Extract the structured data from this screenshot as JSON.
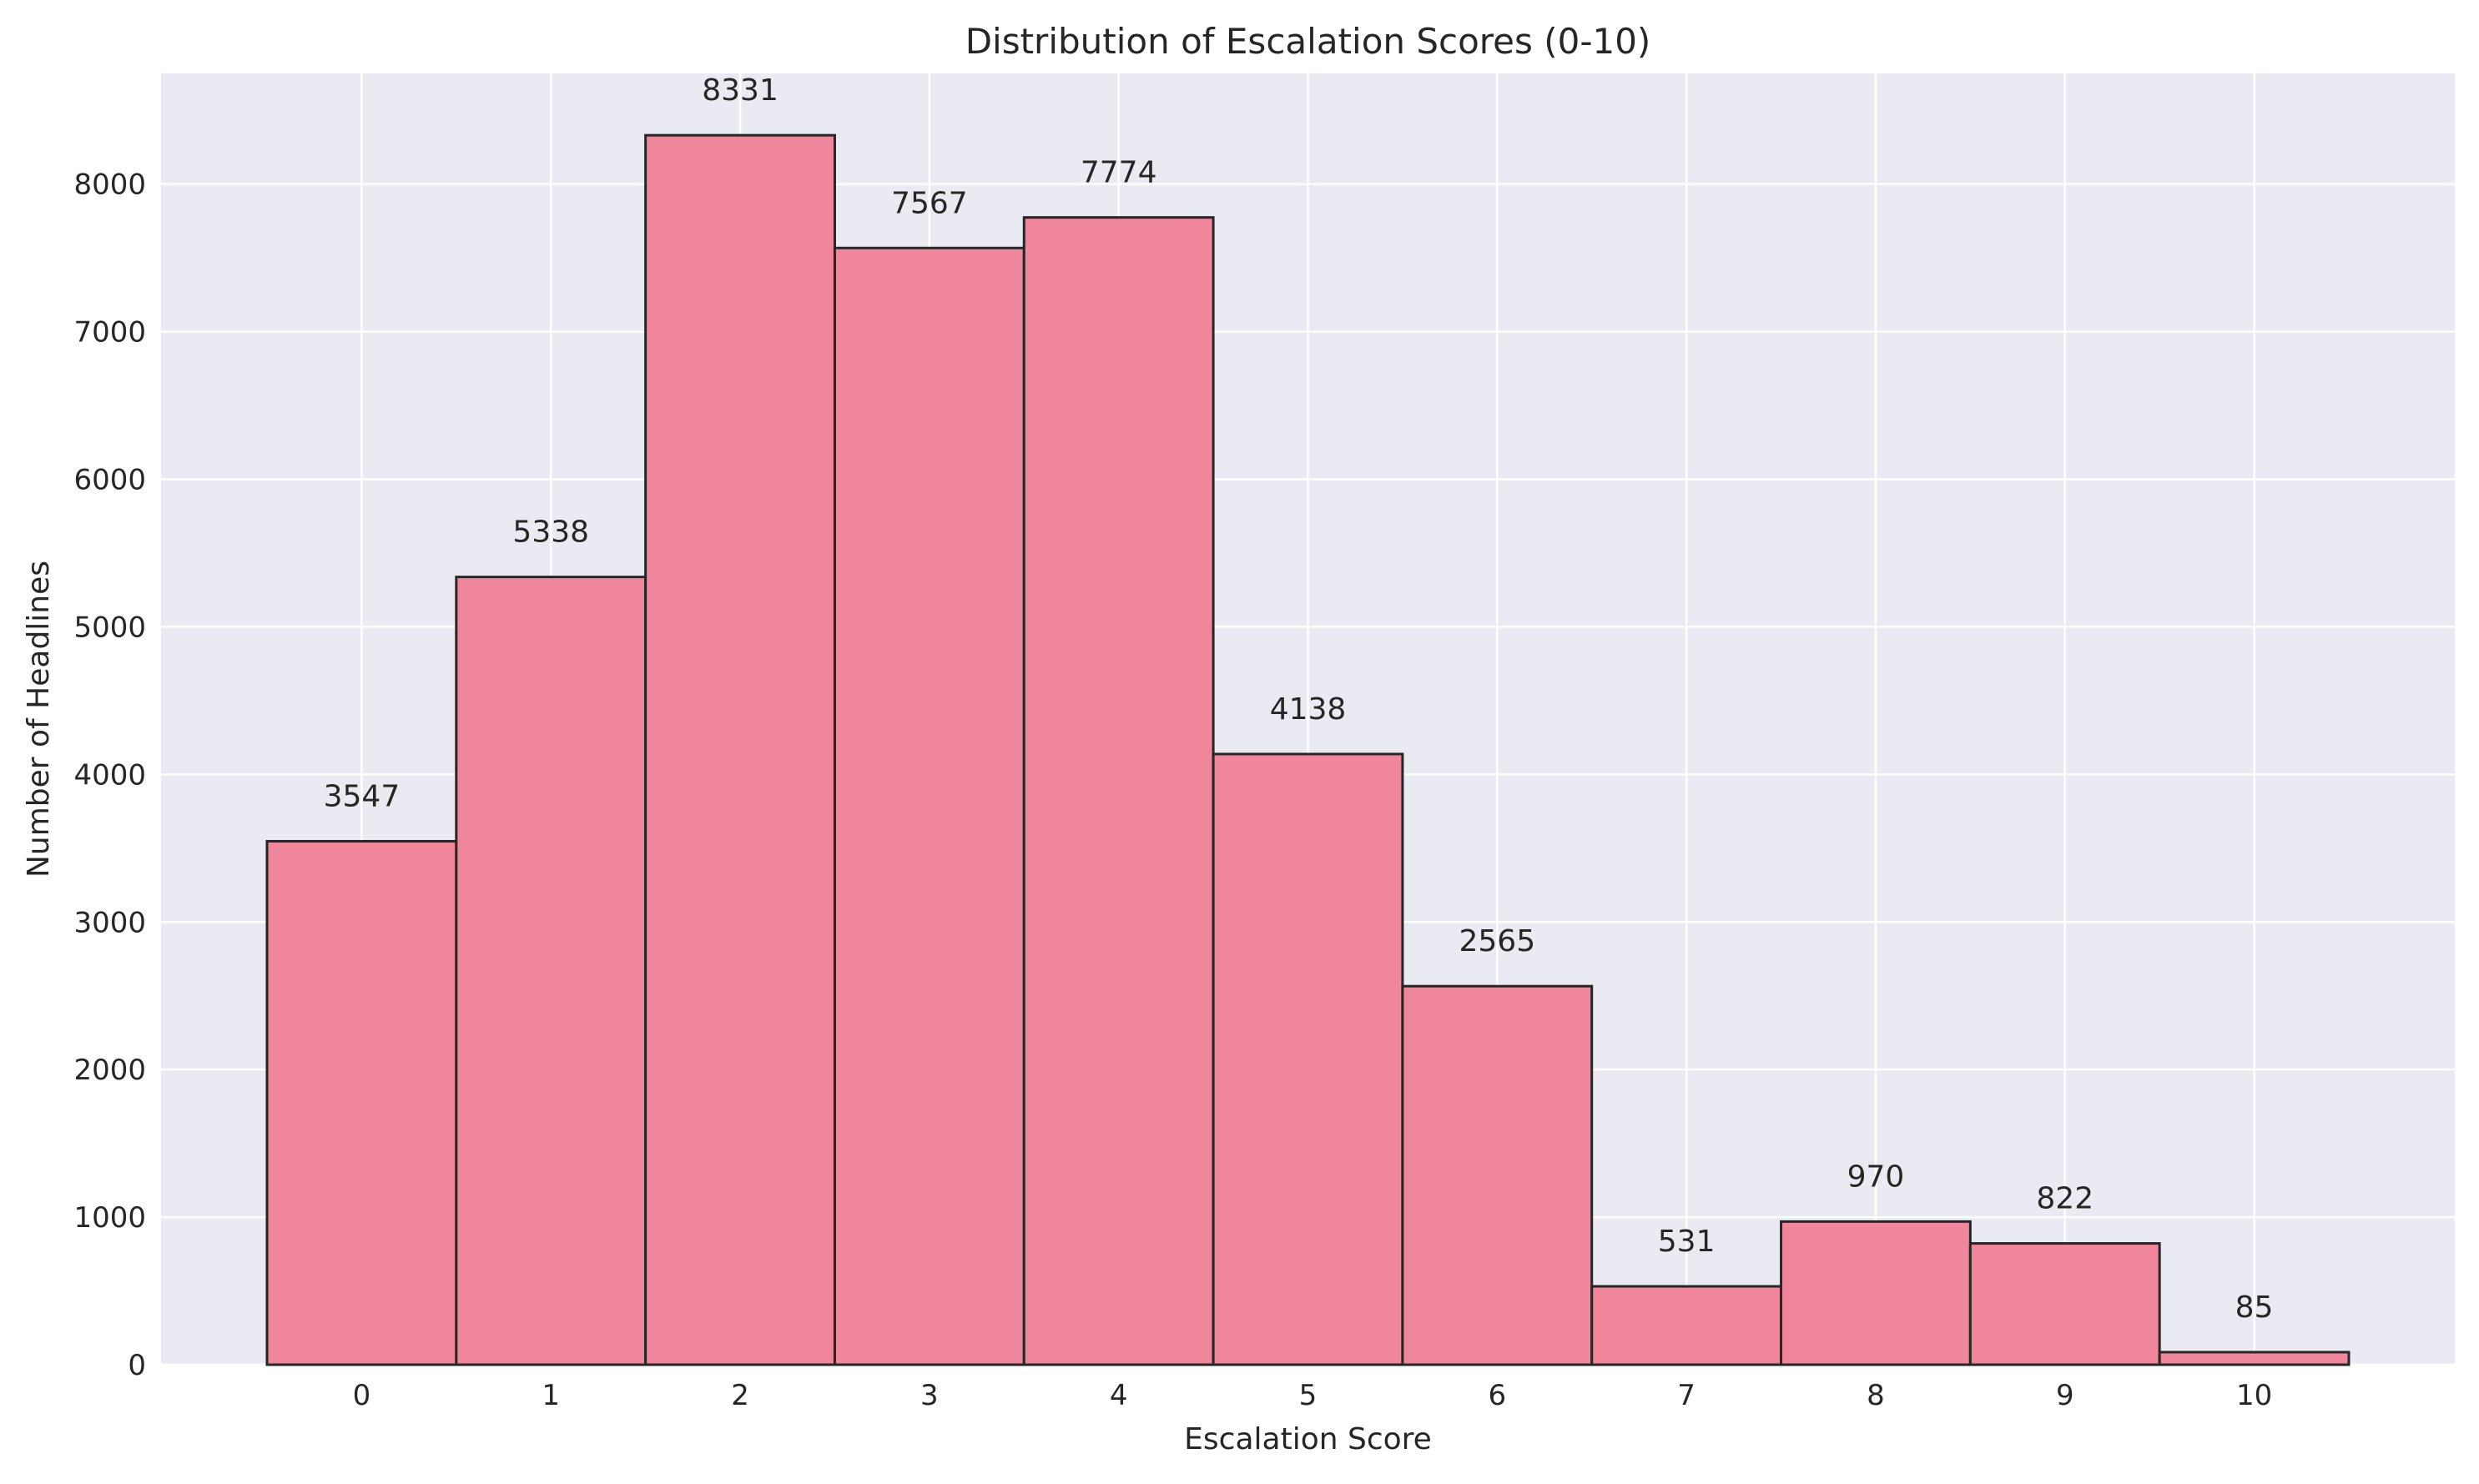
{
  "chart_data": {
    "type": "bar",
    "title": "Distribution of Escalation Scores (0-10)",
    "xlabel": "Escalation Score",
    "ylabel": "Number of Headlines",
    "categories": [
      "0",
      "1",
      "2",
      "3",
      "4",
      "5",
      "6",
      "7",
      "8",
      "9",
      "10"
    ],
    "values": [
      3547,
      5338,
      8331,
      7567,
      7774,
      4138,
      2565,
      531,
      970,
      822,
      85
    ],
    "data_labels": [
      "3547",
      "5338",
      "8331",
      "7567",
      "7774",
      "4138",
      "2565",
      "531",
      "970",
      "822",
      "85"
    ],
    "ylim": [
      0,
      8750
    ],
    "yticks": [
      0,
      1000,
      2000,
      3000,
      4000,
      5000,
      6000,
      7000,
      8000
    ],
    "ytick_labels": [
      "0",
      "1000",
      "2000",
      "3000",
      "4000",
      "5000",
      "6000",
      "7000",
      "8000"
    ],
    "xlim": [
      -1.06,
      11.06
    ],
    "grid": true,
    "colors": {
      "bar_fill": "#f0869b",
      "bar_edge": "#262626",
      "plot_background": "#eaeaf2",
      "grid": "#ffffff"
    }
  }
}
